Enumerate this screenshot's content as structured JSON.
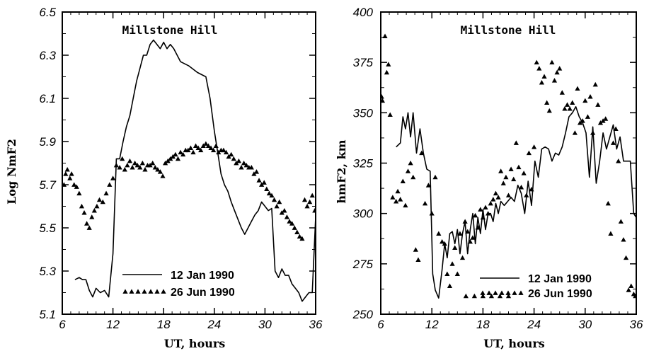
{
  "chart_data": [
    {
      "type": "line",
      "title": "Millstone Hill",
      "xlabel": "UT,  hours",
      "ylabel": "Log  NmF2",
      "xlim": [
        6,
        36
      ],
      "ylim": [
        5.1,
        6.5
      ],
      "xticks": [
        6,
        12,
        18,
        24,
        30,
        36
      ],
      "yticks": [
        5.1,
        5.3,
        5.5,
        5.7,
        5.9,
        6.1,
        6.3,
        6.5
      ],
      "xtick_labels": [
        "6",
        "12",
        "18",
        "24",
        "30",
        "36"
      ],
      "ytick_labels": [
        "5.1",
        "5.3",
        "5.5",
        "5.7",
        "5.9",
        "6.1",
        "6.3",
        "6.5"
      ],
      "grid": false,
      "legend_position": "bottom-right",
      "series": [
        {
          "name": "12 Jan 1990",
          "style": "line",
          "x": [
            7.5,
            8.0,
            8.4,
            8.8,
            9.2,
            9.6,
            10.0,
            10.5,
            11.0,
            11.5,
            12.0,
            12.4,
            12.8,
            13.2,
            13.6,
            14.0,
            14.4,
            14.8,
            15.2,
            15.6,
            16.0,
            16.4,
            16.8,
            17.2,
            17.6,
            18.0,
            18.4,
            18.8,
            19.2,
            19.6,
            20.0,
            21.0,
            22.0,
            23.0,
            23.5,
            24.0,
            24.4,
            24.8,
            25.2,
            25.6,
            26.0,
            26.4,
            26.8,
            27.2,
            27.6,
            28.0,
            28.4,
            28.8,
            29.2,
            29.6,
            30.0,
            30.4,
            30.8,
            31.2,
            31.6,
            32.0,
            32.4,
            32.8,
            33.2,
            33.6,
            34.0,
            34.4,
            34.8,
            35.2,
            35.6,
            36.0
          ],
          "y": [
            5.26,
            5.27,
            5.26,
            5.26,
            5.21,
            5.18,
            5.22,
            5.2,
            5.21,
            5.18,
            5.38,
            5.82,
            5.82,
            5.9,
            5.97,
            6.02,
            6.1,
            6.18,
            6.24,
            6.3,
            6.3,
            6.35,
            6.37,
            6.35,
            6.33,
            6.36,
            6.33,
            6.35,
            6.33,
            6.3,
            6.27,
            6.25,
            6.22,
            6.2,
            6.1,
            5.95,
            5.85,
            5.75,
            5.7,
            5.67,
            5.62,
            5.58,
            5.54,
            5.5,
            5.47,
            5.5,
            5.53,
            5.56,
            5.58,
            5.62,
            5.6,
            5.58,
            5.59,
            5.3,
            5.27,
            5.31,
            5.28,
            5.28,
            5.24,
            5.22,
            5.2,
            5.16,
            5.18,
            5.2,
            5.2,
            5.55
          ]
        },
        {
          "name": "26 Jun 1990",
          "style": "triangles",
          "x": [
            6.2,
            6.4,
            6.6,
            6.9,
            7.1,
            7.4,
            7.7,
            8.0,
            8.3,
            8.6,
            8.9,
            9.2,
            9.5,
            9.8,
            10.1,
            10.4,
            10.8,
            11.2,
            11.6,
            12.0,
            12.4,
            12.8,
            13.1,
            13.4,
            13.7,
            14.0,
            14.3,
            14.6,
            14.9,
            15.2,
            15.5,
            15.8,
            16.1,
            16.4,
            16.7,
            17.0,
            17.3,
            17.6,
            17.9,
            18.2,
            18.5,
            18.8,
            19.1,
            19.4,
            19.7,
            20.0,
            20.3,
            20.6,
            20.9,
            21.2,
            21.5,
            21.8,
            22.1,
            22.4,
            22.7,
            23.0,
            23.3,
            23.6,
            23.9,
            24.2,
            24.5,
            24.8,
            25.1,
            25.4,
            25.7,
            26.0,
            26.3,
            26.6,
            26.9,
            27.2,
            27.5,
            27.8,
            28.1,
            28.4,
            28.7,
            29.0,
            29.3,
            29.6,
            29.9,
            30.2,
            30.5,
            30.8,
            31.1,
            31.4,
            31.7,
            32.0,
            32.3,
            32.6,
            32.9,
            33.2,
            33.5,
            33.8,
            34.1,
            34.4,
            34.7,
            35.0,
            35.3,
            35.6,
            35.9
          ],
          "y": [
            5.7,
            5.75,
            5.77,
            5.73,
            5.75,
            5.7,
            5.69,
            5.66,
            5.6,
            5.57,
            5.52,
            5.5,
            5.55,
            5.58,
            5.6,
            5.63,
            5.62,
            5.66,
            5.7,
            5.73,
            5.79,
            5.78,
            5.82,
            5.77,
            5.79,
            5.81,
            5.78,
            5.8,
            5.79,
            5.78,
            5.8,
            5.77,
            5.79,
            5.79,
            5.8,
            5.78,
            5.77,
            5.76,
            5.74,
            5.8,
            5.81,
            5.82,
            5.83,
            5.84,
            5.82,
            5.85,
            5.84,
            5.86,
            5.86,
            5.87,
            5.85,
            5.88,
            5.87,
            5.86,
            5.88,
            5.89,
            5.88,
            5.87,
            5.86,
            5.88,
            5.85,
            5.86,
            5.86,
            5.85,
            5.83,
            5.84,
            5.82,
            5.8,
            5.81,
            5.78,
            5.8,
            5.79,
            5.78,
            5.78,
            5.75,
            5.76,
            5.72,
            5.7,
            5.71,
            5.68,
            5.66,
            5.65,
            5.63,
            5.6,
            5.62,
            5.57,
            5.58,
            5.55,
            5.53,
            5.52,
            5.5,
            5.48,
            5.46,
            5.45,
            5.63,
            5.6,
            5.62,
            5.65,
            5.58
          ]
        }
      ]
    },
    {
      "type": "line",
      "title": "Millstone Hill",
      "xlabel": "UT,  hours",
      "ylabel": "hmF2,  km",
      "xlim": [
        6,
        36
      ],
      "ylim": [
        250,
        400
      ],
      "xticks": [
        6,
        12,
        18,
        24,
        30,
        36
      ],
      "yticks": [
        250,
        275,
        300,
        325,
        350,
        375,
        400
      ],
      "xtick_labels": [
        "6",
        "12",
        "18",
        "24",
        "30",
        "36"
      ],
      "ytick_labels": [
        "250",
        "275",
        "300",
        "325",
        "350",
        "375",
        "400"
      ],
      "grid": false,
      "legend_position": "bottom-right",
      "series": [
        {
          "name": "12 Jan 1990",
          "style": "line",
          "x": [
            7.8,
            8.3,
            8.6,
            8.9,
            9.2,
            9.5,
            9.8,
            10.2,
            10.6,
            11.0,
            11.4,
            11.8,
            12.1,
            12.4,
            12.8,
            13.2,
            13.5,
            13.8,
            14.1,
            14.4,
            14.7,
            15.0,
            15.3,
            15.6,
            15.9,
            16.2,
            16.5,
            16.8,
            17.1,
            17.4,
            17.7,
            18.0,
            18.3,
            18.6,
            18.9,
            19.2,
            19.5,
            19.8,
            20.1,
            20.5,
            20.9,
            21.3,
            21.7,
            22.1,
            22.5,
            22.9,
            23.3,
            23.7,
            24.1,
            24.5,
            24.9,
            25.3,
            25.7,
            26.1,
            26.5,
            26.9,
            27.3,
            27.7,
            28.1,
            28.5,
            28.9,
            29.3,
            29.7,
            30.1,
            30.5,
            30.9,
            31.3,
            31.7,
            32.1,
            32.5,
            32.9,
            33.3,
            33.7,
            34.1,
            34.5,
            34.9,
            35.3,
            35.7,
            36.0
          ],
          "y": [
            333,
            335,
            348,
            342,
            350,
            338,
            350,
            330,
            342,
            330,
            322,
            321,
            270,
            262,
            258,
            272,
            285,
            278,
            290,
            291,
            285,
            292,
            280,
            290,
            296,
            280,
            292,
            300,
            285,
            298,
            290,
            302,
            292,
            300,
            300,
            296,
            305,
            300,
            306,
            304,
            306,
            308,
            306,
            314,
            310,
            300,
            316,
            304,
            326,
            318,
            332,
            333,
            332,
            326,
            330,
            329,
            333,
            340,
            348,
            350,
            353,
            348,
            345,
            340,
            318,
            343,
            315,
            326,
            340,
            332,
            338,
            344,
            332,
            338,
            326,
            326,
            326,
            300,
            298
          ]
        },
        {
          "name": "26 Jun 1990",
          "style": "triangles",
          "x": [
            6.1,
            6.2,
            6.5,
            6.7,
            6.9,
            7.1,
            7.4,
            7.8,
            8.0,
            8.3,
            8.6,
            8.9,
            9.2,
            9.5,
            9.8,
            10.1,
            10.4,
            10.8,
            11.2,
            11.6,
            12.0,
            12.4,
            12.8,
            13.2,
            13.5,
            13.8,
            14.1,
            14.4,
            14.7,
            15.0,
            15.3,
            15.6,
            15.9,
            16.2,
            16.5,
            16.8,
            17.1,
            17.4,
            17.7,
            18.0,
            18.3,
            18.6,
            18.9,
            19.2,
            19.5,
            19.8,
            20.1,
            20.4,
            20.7,
            21.0,
            21.3,
            21.6,
            21.9,
            22.2,
            22.5,
            22.8,
            23.1,
            23.4,
            23.7,
            24.0,
            24.3,
            24.6,
            24.9,
            25.2,
            25.5,
            25.8,
            26.1,
            26.4,
            26.7,
            27.0,
            27.3,
            27.6,
            27.9,
            28.2,
            28.5,
            28.8,
            29.1,
            29.4,
            29.7,
            30.0,
            30.3,
            30.6,
            30.9,
            31.2,
            31.5,
            31.8,
            32.1,
            32.4,
            32.7,
            33.0,
            33.3,
            33.6,
            33.9,
            34.2,
            34.5,
            34.8,
            35.1,
            35.4,
            35.7,
            35.9,
            16.0,
            17.0,
            18.0,
            19.0,
            20.0,
            21.0
          ],
          "y": [
            358,
            356,
            388,
            370,
            374,
            349,
            308,
            306,
            311,
            307,
            316,
            304,
            321,
            325,
            318,
            282,
            277,
            330,
            305,
            314,
            300,
            318,
            290,
            286,
            285,
            270,
            264,
            275,
            283,
            270,
            290,
            278,
            296,
            291,
            286,
            288,
            299,
            293,
            302,
            298,
            303,
            300,
            305,
            307,
            310,
            308,
            321,
            315,
            318,
            309,
            322,
            317,
            335,
            323,
            313,
            320,
            309,
            330,
            312,
            333,
            375,
            372,
            365,
            368,
            355,
            351,
            375,
            366,
            370,
            372,
            360,
            352,
            354,
            352,
            355,
            340,
            362,
            345,
            346,
            356,
            348,
            358,
            340,
            364,
            354,
            345,
            346,
            347,
            305,
            290,
            335,
            342,
            326,
            296,
            287,
            278,
            262,
            264,
            260,
            259,
            259,
            259,
            259,
            259,
            259,
            259
          ]
        }
      ]
    }
  ]
}
